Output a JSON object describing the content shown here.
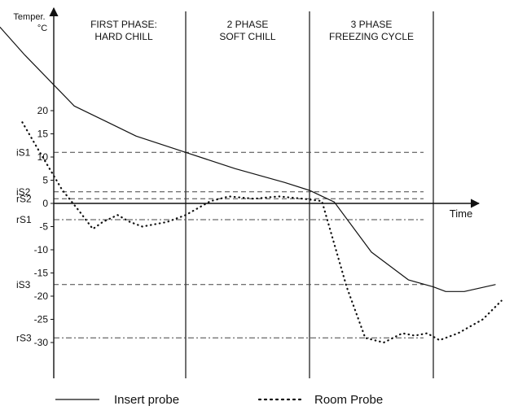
{
  "chart_data": {
    "type": "line",
    "ylabel_line1": "Temper.",
    "ylabel_line2": "°C",
    "xlabel": "Time",
    "ylim": [
      -37,
      42
    ],
    "y_ticks": [
      20,
      15,
      10,
      5,
      0,
      -5,
      -10,
      -15,
      -20,
      -25,
      -30
    ],
    "y_tick_labels": [
      "20",
      "15",
      "10",
      "5",
      "0",
      "-5",
      "-10",
      "-15",
      "-20",
      "-25",
      "-30"
    ],
    "phases": [
      {
        "line1": "FIRST PHASE:",
        "line2": "HARD CHILL",
        "start": 0,
        "end": 1
      },
      {
        "line1": "2 PHASE",
        "line2": "SOFT CHILL",
        "start": 1,
        "end": 2
      },
      {
        "line1": "3 PHASE",
        "line2": "FREEZING CYCLE",
        "start": 2,
        "end": 3
      }
    ],
    "setpoints": [
      {
        "label": "iS1",
        "value": 11,
        "style": "dashed"
      },
      {
        "label": "iS2",
        "value": 2.5,
        "style": "dashed"
      },
      {
        "label": "rS2",
        "value": 1,
        "style": "dashed"
      },
      {
        "label": "rS1",
        "value": -3.5,
        "style": "dashdot"
      },
      {
        "label": "iS3",
        "value": -17.5,
        "style": "dashed"
      },
      {
        "label": "rS3",
        "value": -29,
        "style": "dashdot"
      }
    ],
    "series": [
      {
        "name": "Insert probe",
        "style": "solid",
        "x": [
          -0.5,
          -0.3,
          0.1,
          0.6,
          1.0,
          1.4,
          1.8,
          2.0,
          2.2,
          2.5,
          2.8,
          3.0,
          3.1,
          3.25,
          3.5
        ],
        "y": [
          38,
          32,
          21,
          14.5,
          11,
          7.5,
          4.5,
          2.8,
          0.3,
          -10.5,
          -16.5,
          -18,
          -19,
          -19,
          -17.5
        ]
      },
      {
        "name": "Room Probe",
        "style": "dotted",
        "x": [
          -0.32,
          -0.2,
          0.0,
          0.15,
          0.25,
          0.33,
          0.45,
          0.55,
          0.65,
          0.85,
          1.0,
          1.2,
          1.35,
          1.55,
          1.75,
          1.95,
          2.1,
          2.3,
          2.45,
          2.6,
          2.75,
          2.85,
          2.95,
          3.05,
          3.2,
          3.4,
          3.55
        ],
        "y": [
          17.5,
          12,
          3,
          -2,
          -5.5,
          -4,
          -2.5,
          -4,
          -5,
          -4,
          -2.5,
          0.5,
          1.5,
          1,
          1.5,
          1,
          0.5,
          -18,
          -29,
          -30,
          -28,
          -28.5,
          -28,
          -29.5,
          -28,
          -25,
          -21
        ]
      }
    ]
  }
}
